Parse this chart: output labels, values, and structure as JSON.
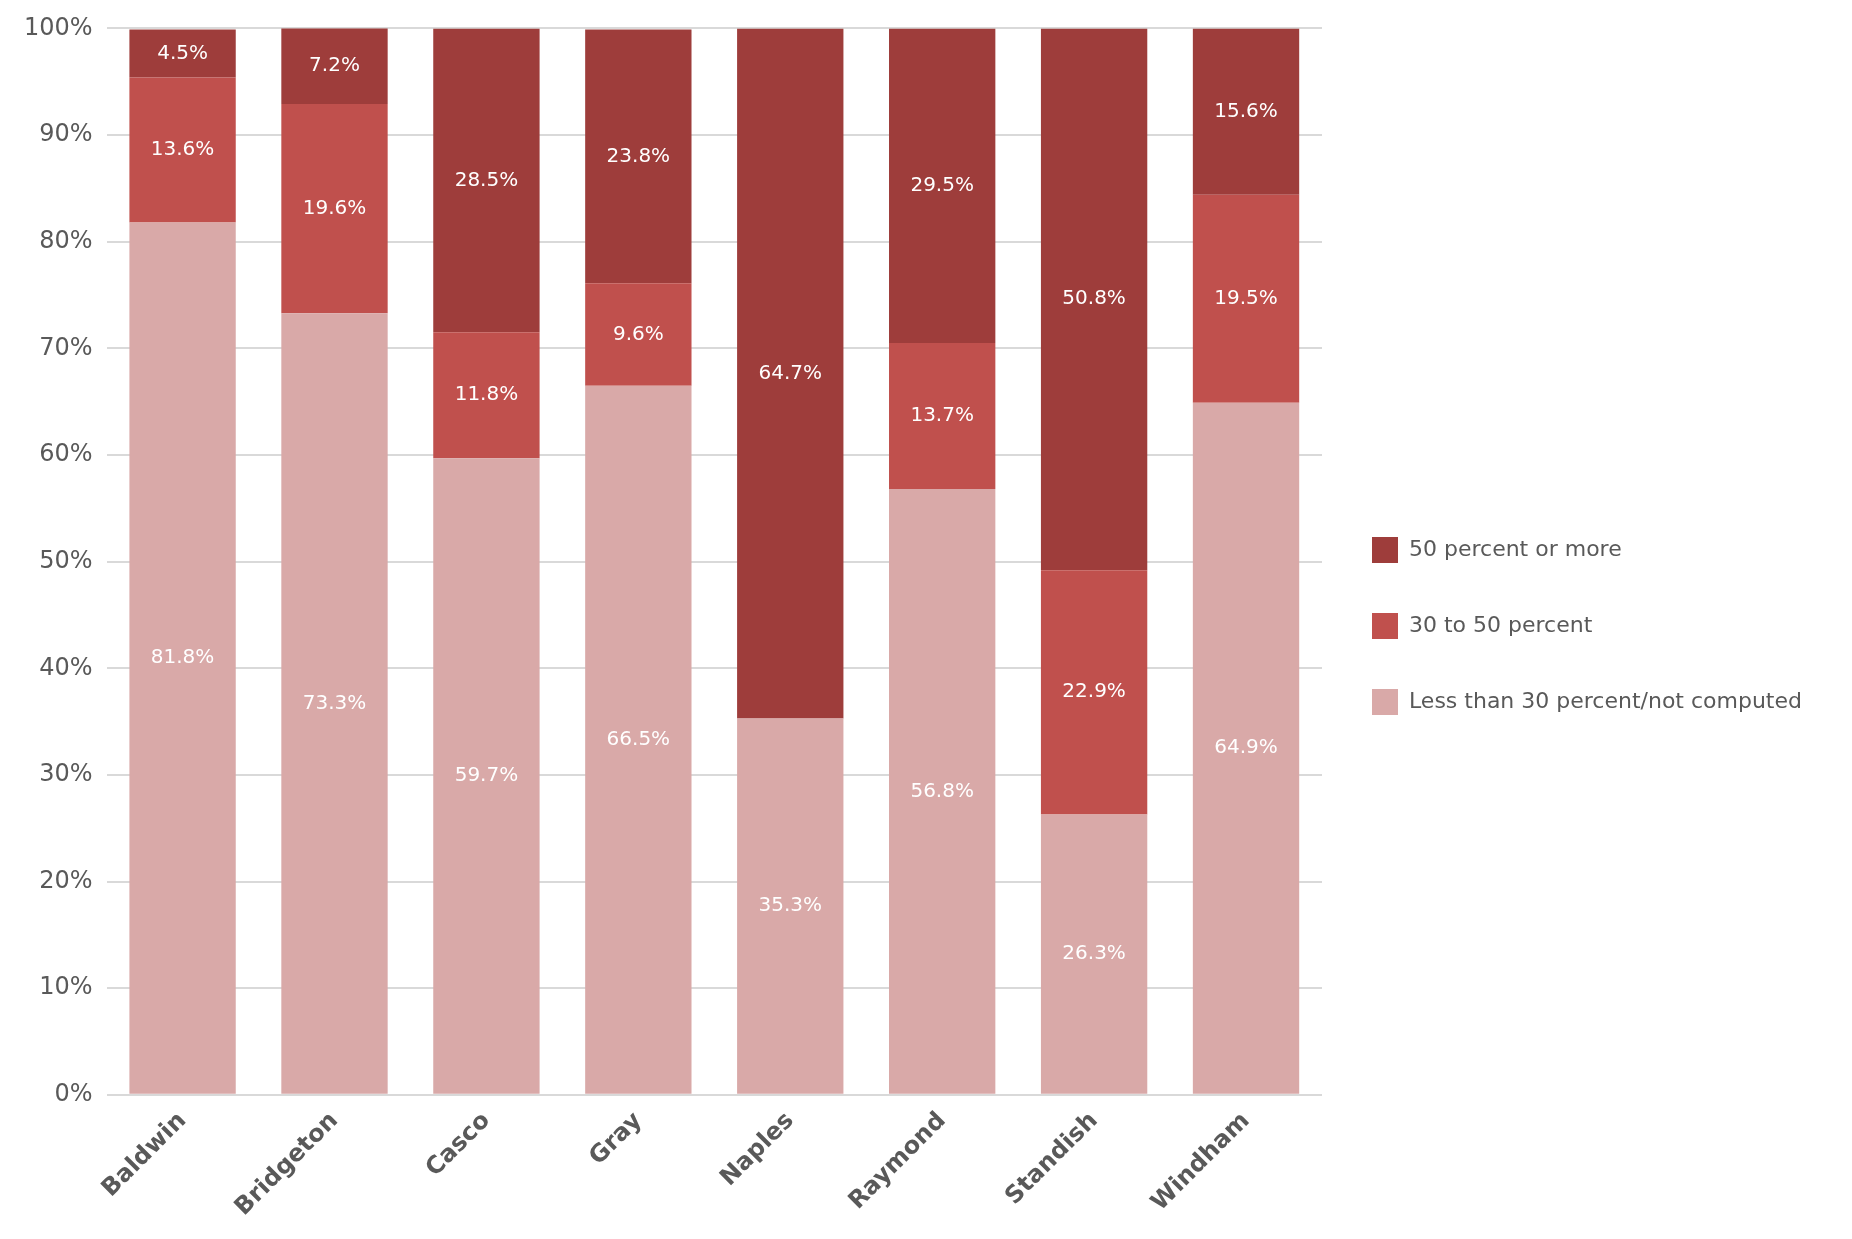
{
  "chart_data": {
    "type": "bar",
    "stacked": true,
    "categories": [
      "Baldwin",
      "Bridgeton",
      "Casco",
      "Gray",
      "Naples",
      "Raymond",
      "Standish",
      "Windham"
    ],
    "series": [
      {
        "name": "Less than 30 percent/not computed",
        "color": "#d9a9a8",
        "values": [
          81.8,
          73.3,
          59.7,
          66.5,
          35.3,
          56.8,
          26.3,
          64.9
        ],
        "value_labels": [
          "81.8%",
          "73.3%",
          "59.7%",
          "66.5%",
          "35.3%",
          "56.8%",
          "26.3%",
          "64.9%"
        ]
      },
      {
        "name": "30 to 50 percent",
        "color": "#c0504d",
        "values": [
          13.6,
          19.6,
          11.8,
          9.6,
          null,
          13.7,
          22.9,
          19.5
        ],
        "value_labels": [
          "13.6%",
          "19.6%",
          "11.8%",
          "9.6%",
          null,
          "13.7%",
          "22.9%",
          "19.5%"
        ]
      },
      {
        "name": "50 percent or more",
        "color": "#9e3d3b",
        "values": [
          4.5,
          7.2,
          28.5,
          23.8,
          64.7,
          29.5,
          50.8,
          15.6
        ],
        "value_labels": [
          "4.5%",
          "7.2%",
          "28.5%",
          "23.8%",
          "64.7%",
          "29.5%",
          "50.8%",
          "15.6%"
        ]
      }
    ],
    "ylim": [
      0,
      100
    ],
    "yticks": [
      {
        "value": 0,
        "label": "0%"
      },
      {
        "value": 10,
        "label": "10%"
      },
      {
        "value": 20,
        "label": "20%"
      },
      {
        "value": 30,
        "label": "30%"
      },
      {
        "value": 40,
        "label": "40%"
      },
      {
        "value": 50,
        "label": "50%"
      },
      {
        "value": 60,
        "label": "60%"
      },
      {
        "value": 70,
        "label": "70%"
      },
      {
        "value": 80,
        "label": "80%"
      },
      {
        "value": 90,
        "label": "90%"
      },
      {
        "value": 100,
        "label": "100%"
      }
    ],
    "grid": "y",
    "legend": "right"
  }
}
